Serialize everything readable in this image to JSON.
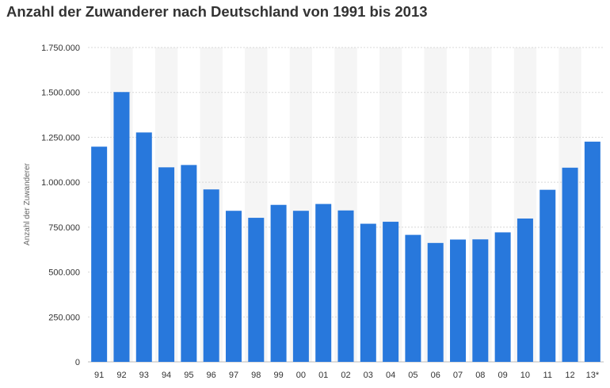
{
  "chart_data": {
    "type": "bar",
    "title": "Anzahl der Zuwanderer nach Deutschland von 1991 bis 2013",
    "xlabel": "",
    "ylabel": "Anzahl der Zuwanderer",
    "categories": [
      "91",
      "92",
      "93",
      "94",
      "95",
      "96",
      "97",
      "98",
      "99",
      "00",
      "01",
      "02",
      "03",
      "04",
      "05",
      "06",
      "07",
      "08",
      "09",
      "10",
      "11",
      "12",
      "13*"
    ],
    "values": [
      1198000,
      1502000,
      1277000,
      1083000,
      1096000,
      960000,
      841000,
      802000,
      874000,
      841000,
      879000,
      843000,
      769000,
      780000,
      707000,
      662000,
      681000,
      682000,
      721000,
      798000,
      958000,
      1081000,
      1226000
    ],
    "ylim": [
      0,
      1750000
    ],
    "yticks": [
      0,
      250000,
      500000,
      750000,
      1000000,
      1250000,
      1500000,
      1750000
    ],
    "ytick_labels": [
      "0",
      "250.000",
      "500.000",
      "750.000",
      "1.000.000",
      "1.250.000",
      "1.500.000",
      "1.750.000"
    ],
    "grid": true,
    "legend": "none",
    "bar_color": "#2878dc",
    "band_color": "#f5f5f5",
    "grid_color": "#d8d8d8"
  }
}
